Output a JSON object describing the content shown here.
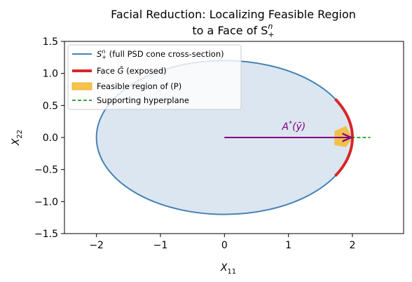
{
  "chart_data": {
    "type": "line",
    "title_line1": "Facial Reduction: Localizing Feasible Region",
    "title_line2": "to a Face of S",
    "title_sup": "n",
    "title_sub": "+",
    "xlabel": "X",
    "xlabel_sub": "11",
    "ylabel": "X",
    "ylabel_sub": "22",
    "xlim": [
      -2.5,
      2.8
    ],
    "ylim": [
      -1.5,
      1.5
    ],
    "xticks": [
      -2,
      -1,
      0,
      1,
      2
    ],
    "yticks": [
      -1.5,
      -1.0,
      -0.5,
      0.0,
      0.5,
      1.0,
      1.5
    ],
    "xtick_labels": [
      "−2",
      "−1",
      "0",
      "1",
      "2"
    ],
    "ytick_labels": [
      "−1.5",
      "−1.0",
      "−0.5",
      "0.0",
      "0.5",
      "1.0",
      "1.5"
    ],
    "grid": false,
    "legend_position": "top-left",
    "ellipse": {
      "center": [
        0,
        0
      ],
      "semi_x": 2.0,
      "semi_y": 1.2
    },
    "face_arc": {
      "theta_min_deg": -30,
      "theta_max_deg": 30
    },
    "feasible_region": [
      [
        1.72,
        0.1
      ],
      [
        1.9,
        0.18
      ],
      [
        1.97,
        0.05
      ],
      [
        1.97,
        -0.05
      ],
      [
        1.9,
        -0.15
      ],
      [
        1.72,
        -0.12
      ]
    ],
    "hyperplane": {
      "x": [
        1.72,
        2.28
      ],
      "y": 0.0
    },
    "arrow": {
      "from": [
        0.0,
        0.0
      ],
      "to": [
        1.98,
        0.0
      ],
      "label": "A",
      "label_sup": "*",
      "label_rest": "(ȳ)",
      "label_pos": [
        0.9,
        0.12
      ]
    },
    "legend": [
      {
        "key": "cone",
        "label_prefix": "S",
        "label_sup": "n",
        "label_sub": "+",
        "label_rest": " (full PSD cone cross-section)"
      },
      {
        "key": "face",
        "label_prefix": "Face ",
        "label_symbol": "Ḡ",
        "label_rest": " (exposed)"
      },
      {
        "key": "feasible",
        "label": "Feasible region of (P)"
      },
      {
        "key": "hyperplane",
        "label": "Supporting hyperplane"
      }
    ],
    "colors": {
      "ellipse_stroke": "#4682b4",
      "ellipse_fill": "#dce6f1",
      "face": "#d62728",
      "feasible": "#f5b82e",
      "hyperplane": "#008000",
      "arrow": "#800080"
    }
  }
}
